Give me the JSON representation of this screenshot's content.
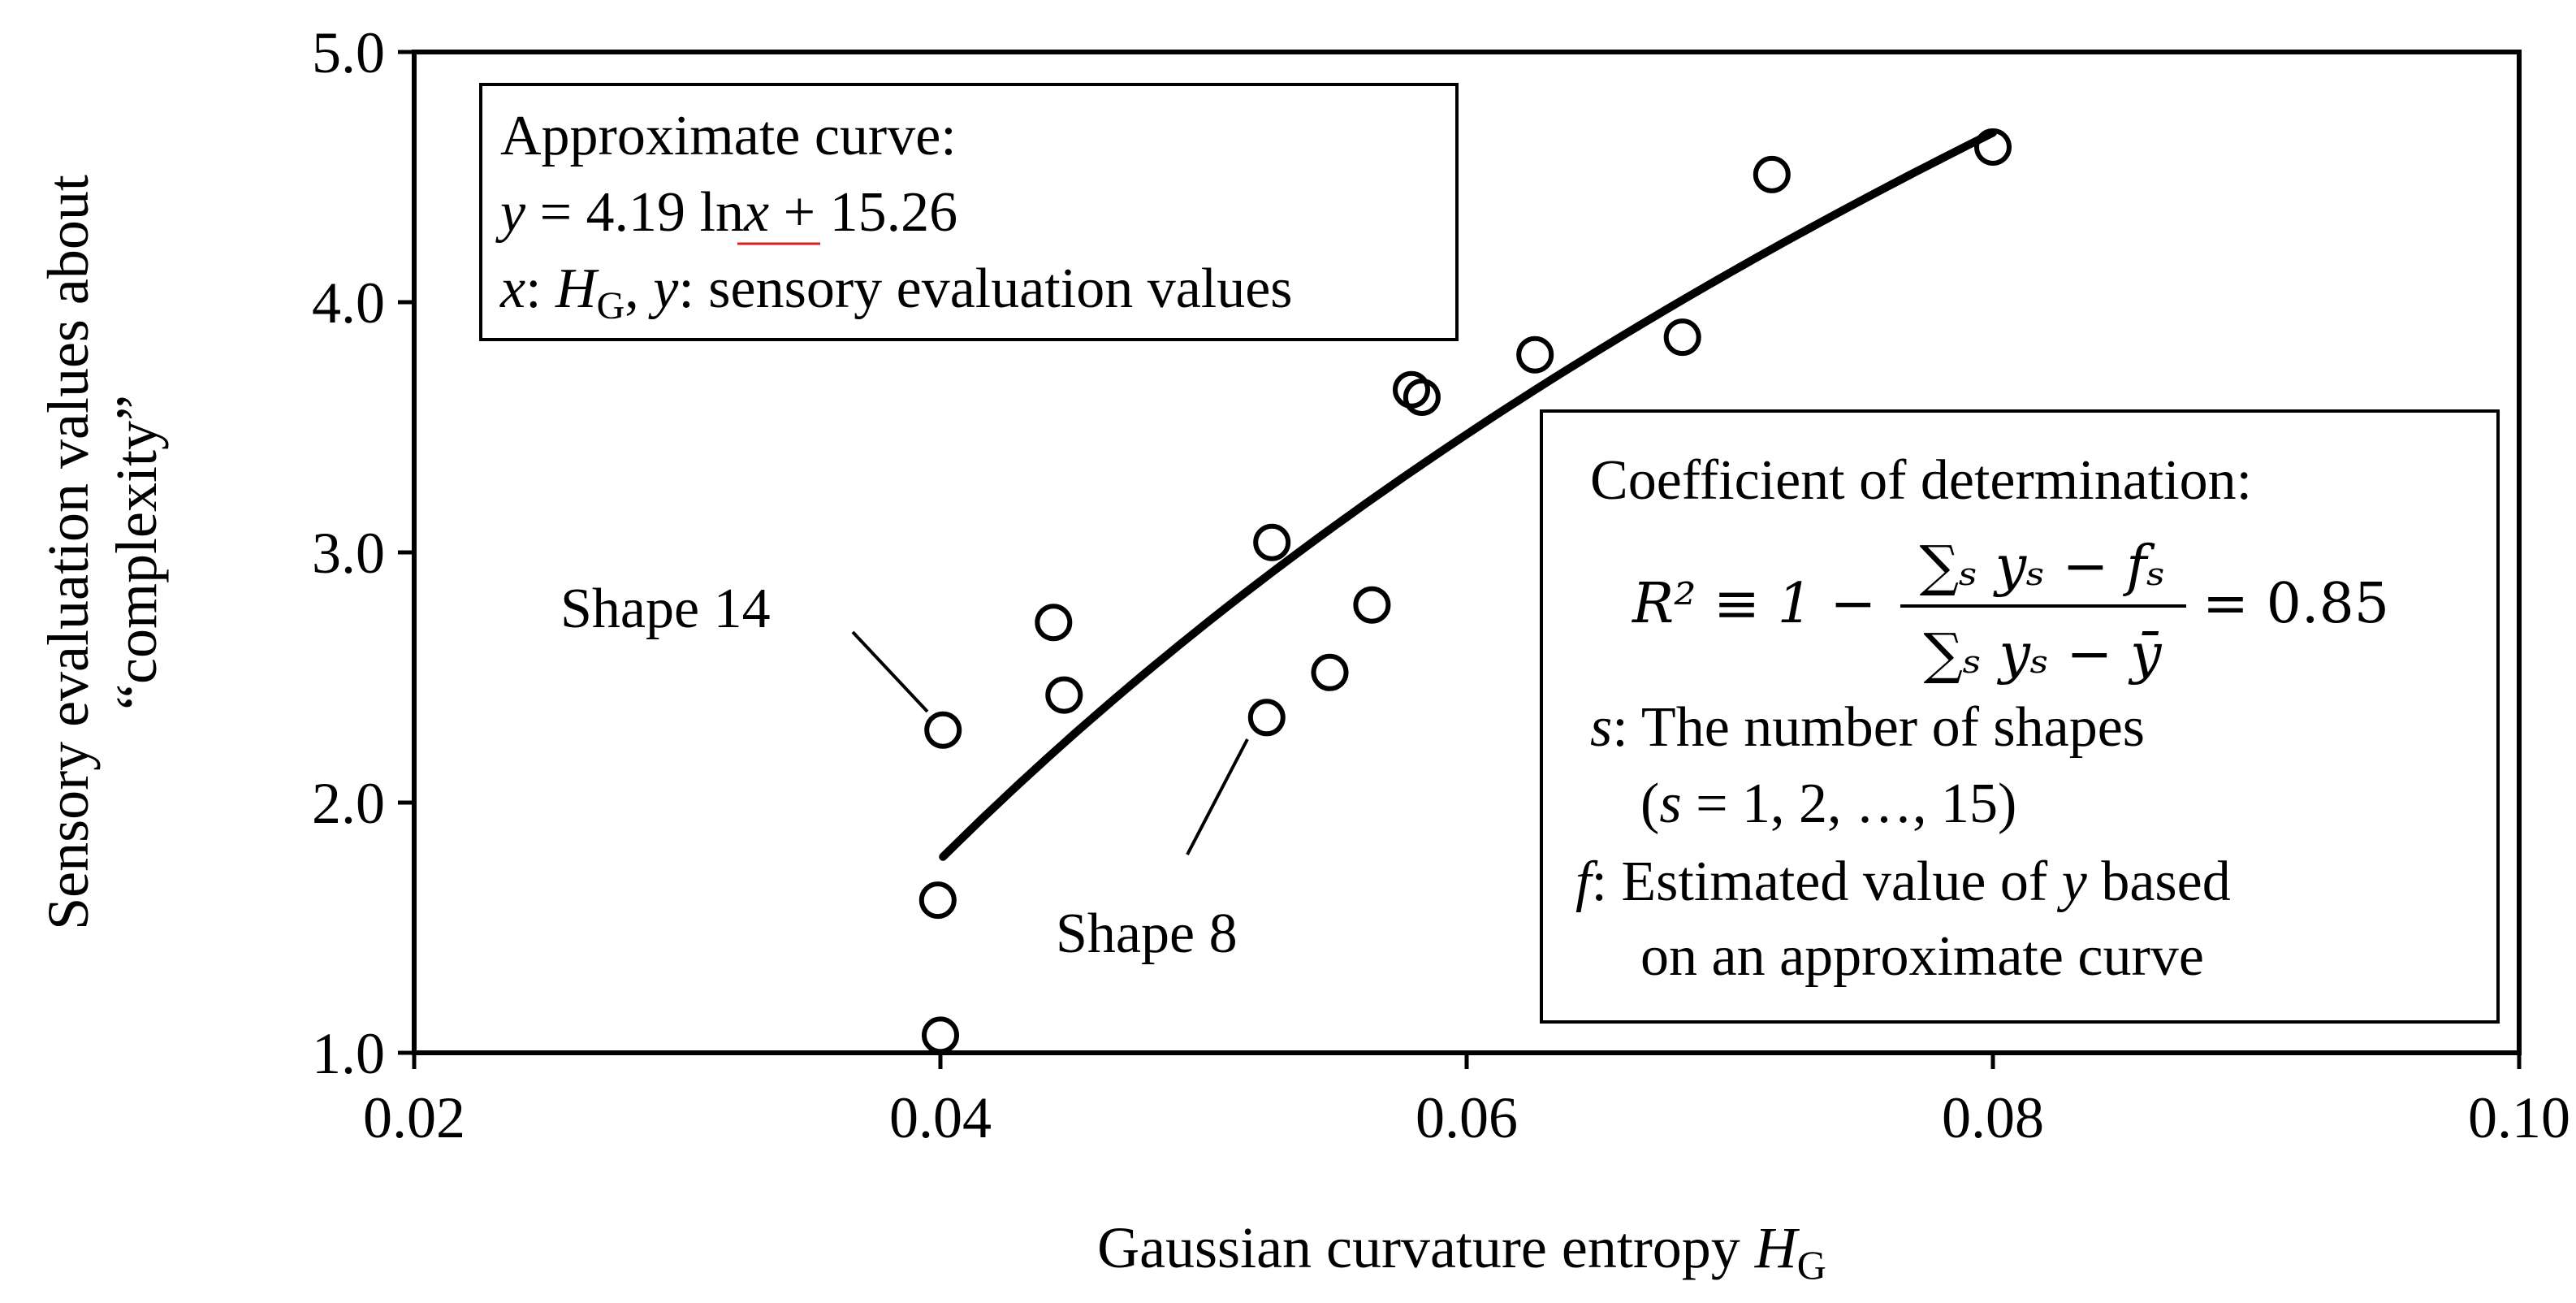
{
  "chart_data": {
    "type": "scatter",
    "title": "",
    "xlabel": "Gaussian curvature entropy",
    "xlabel_symbol": "H",
    "xlabel_subscript": "G",
    "ylabel_line1": "Sensory evaluation values about",
    "ylabel_line2": "“complexity”",
    "xlim": [
      0.02,
      0.1
    ],
    "ylim": [
      1.0,
      5.0
    ],
    "xticks": [
      "0.02",
      "0.04",
      "0.06",
      "0.08",
      "0.10"
    ],
    "yticks": [
      "1.0",
      "2.0",
      "3.0",
      "4.0",
      "5.0"
    ],
    "grid": false,
    "series": [
      {
        "points": [
          {
            "x": 0.04,
            "y": 1.07
          },
          {
            "x": 0.0399,
            "y": 1.61
          },
          {
            "x": 0.0401,
            "y": 2.29
          },
          {
            "x": 0.0443,
            "y": 2.72
          },
          {
            "x": 0.0447,
            "y": 2.43
          },
          {
            "x": 0.0524,
            "y": 2.34
          },
          {
            "x": 0.0526,
            "y": 3.04
          },
          {
            "x": 0.0548,
            "y": 2.52
          },
          {
            "x": 0.0564,
            "y": 2.79
          },
          {
            "x": 0.0579,
            "y": 3.65
          },
          {
            "x": 0.0583,
            "y": 3.62
          },
          {
            "x": 0.0626,
            "y": 3.79
          },
          {
            "x": 0.0682,
            "y": 3.86
          },
          {
            "x": 0.0716,
            "y": 4.51
          },
          {
            "x": 0.08,
            "y": 4.62
          }
        ]
      }
    ],
    "fit_curve": {
      "a": 4.19,
      "b": 15.26,
      "x_from": 0.0401,
      "x_to": 0.08
    },
    "annotations": {
      "shape14": {
        "label": "Shape 14",
        "x": 0.0401,
        "y": 2.29
      },
      "shape8": {
        "label": "Shape 8",
        "x": 0.0524,
        "y": 2.34
      }
    },
    "box1": {
      "line1": "Approximate curve:",
      "eq_y": "y",
      "eq_mid": " = 4.19 ",
      "eq_ln": "ln",
      "eq_x": "x",
      "eq_tail": " + 15.26",
      "def_x": "x",
      "def_sep1": ": ",
      "def_H": "H",
      "def_G": "G",
      "def_sep2": ", ",
      "def_y": "y",
      "def_tail": ": sensory evaluation values"
    },
    "box2": {
      "line1": "Coefficient of determination:",
      "formula_lhs": "R² ≡ 1 −",
      "formula_num": "∑ₛ yₛ − fₛ",
      "formula_den": "∑ₛ yₛ − ȳ",
      "formula_rhs": "= 0.85",
      "s_var": "s",
      "s_def": ": The number of shapes",
      "s_range_open": "(",
      "s_range_var": "s",
      "s_range_rest": " = 1, 2, …, 15)",
      "f_var": "f",
      "f_def1": ": Estimated value of ",
      "f_def_y": "y",
      "f_def2": " based",
      "f_line2": "on an approximate curve"
    }
  }
}
